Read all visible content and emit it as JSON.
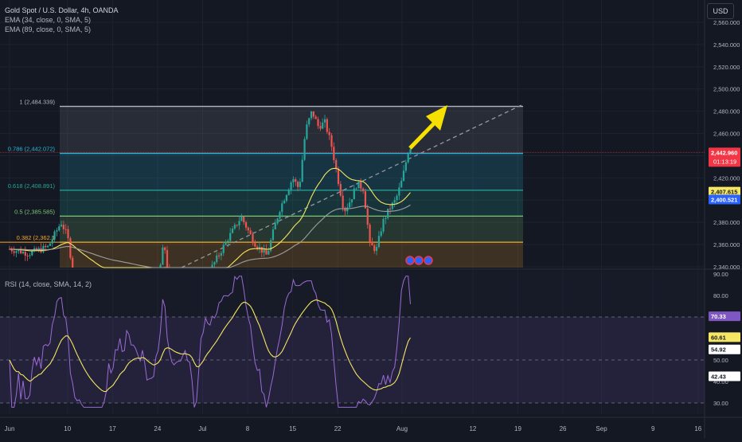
{
  "legend": {
    "title": "Gold Spot / U.S. Dollar, 4h, OANDA",
    "ema1": "EMA (34, close, 0, SMA, 5)",
    "ema2": "EMA (89, close, 0, SMA, 5)",
    "rsi": "RSI (14, close, SMA, 14, 2)"
  },
  "currency_button": "USD",
  "price_axis": {
    "ticks": [
      "2,560.000",
      "2,540.000",
      "2,520.000",
      "2,500.000",
      "2,480.000",
      "2,460.000",
      "2,440.000",
      "2,420.000",
      "2,400.000",
      "2,380.000",
      "2,360.000",
      "2,340.000"
    ],
    "tick_values": [
      2560,
      2540,
      2520,
      2500,
      2480,
      2460,
      2440,
      2420,
      2400,
      2380,
      2360,
      2340
    ]
  },
  "badges": {
    "price": "2,442.960",
    "countdown": "01:13:19",
    "ema34": "2,407.615",
    "ema89": "2,400.521"
  },
  "fib": [
    {
      "label": "1 (2,484.339)",
      "value": 2484.339,
      "color": "#b2b5be"
    },
    {
      "label": "0.786 (2,442.072)",
      "value": 2442.072,
      "color": "#29b6d8"
    },
    {
      "label": "0.618 (2,408.891)",
      "value": 2408.891,
      "color": "#26a69a"
    },
    {
      "label": "0.5 (2,385.585)",
      "value": 2385.585,
      "color": "#7cc576"
    },
    {
      "label": "0.382 (2,362.1",
      "value": 2362.1,
      "color": "#f9a825"
    }
  ],
  "rsi_axis": {
    "ticks": [
      "90.00",
      "80.00",
      "50.00",
      "40.00",
      "30.00"
    ],
    "tick_values": [
      90,
      80,
      50,
      40,
      30
    ]
  },
  "rsi_badges": {
    "rsi": "70.33",
    "ma": "60.61",
    "b3": "54.92",
    "b4": "42.43"
  },
  "time_axis": [
    {
      "label": "Jun",
      "day": 0
    },
    {
      "label": "10",
      "day": 9
    },
    {
      "label": "17",
      "day": 16
    },
    {
      "label": "24",
      "day": 23
    },
    {
      "label": "Jul",
      "day": 30
    },
    {
      "label": "8",
      "day": 37
    },
    {
      "label": "15",
      "day": 44
    },
    {
      "label": "22",
      "day": 51
    },
    {
      "label": "Aug",
      "day": 61
    },
    {
      "label": "12",
      "day": 72
    },
    {
      "label": "19",
      "day": 79
    },
    {
      "label": "26",
      "day": 86
    },
    {
      "label": "Sep",
      "day": 92
    },
    {
      "label": "9",
      "day": 100
    },
    {
      "label": "16",
      "day": 107
    }
  ],
  "colors": {
    "up": "#26a69a",
    "down": "#ef5350",
    "ema34": "#f5e663",
    "ema89": "#9e9e9e",
    "rsi": "#9c6ad6",
    "rsi_ma": "#f5e663",
    "arrow": "#f5e000",
    "price_badge": "#f23645"
  }
}
